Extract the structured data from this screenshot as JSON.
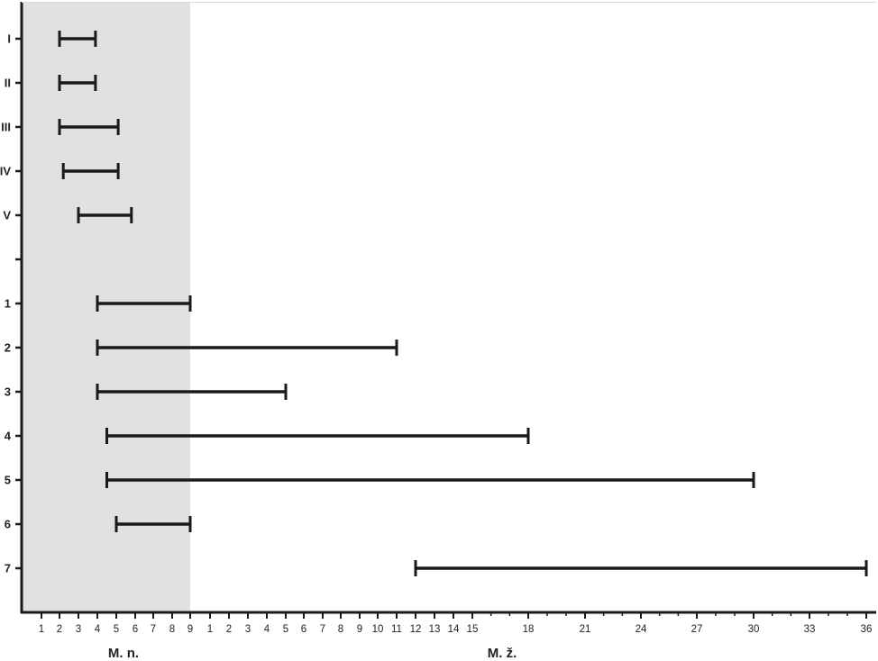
{
  "chart_data": {
    "type": "range-bar",
    "sections": [
      {
        "label": "M. n.",
        "ticks": [
          "1",
          "2",
          "3",
          "4",
          "5",
          "6",
          "7",
          "8",
          "9"
        ]
      },
      {
        "label": "M. ž.",
        "ticks": [
          "1",
          "2",
          "3",
          "4",
          "5",
          "6",
          "7",
          "8",
          "9",
          "10",
          "11",
          "12",
          "13",
          "14",
          "15",
          "18",
          "21",
          "24",
          "27",
          "30",
          "33",
          "36"
        ]
      }
    ],
    "shaded_section": "M. n.",
    "colors": {
      "shade": "#e1e1e1",
      "bar": "#1a1a1a",
      "axis": "#1a1a1a"
    },
    "rows": [
      {
        "label": "I",
        "start": {
          "section": "M. n.",
          "value": 2
        },
        "end": {
          "section": "M. n.",
          "value": 3.9
        }
      },
      {
        "label": "II",
        "start": {
          "section": "M. n.",
          "value": 2
        },
        "end": {
          "section": "M. n.",
          "value": 3.9
        }
      },
      {
        "label": "III",
        "start": {
          "section": "M. n.",
          "value": 2
        },
        "end": {
          "section": "M. n.",
          "value": 5.1
        }
      },
      {
        "label": "IV",
        "start": {
          "section": "M. n.",
          "value": 2.2
        },
        "end": {
          "section": "M. n.",
          "value": 5.1
        }
      },
      {
        "label": "V",
        "start": {
          "section": "M. n.",
          "value": 3
        },
        "end": {
          "section": "M. n.",
          "value": 5.8
        }
      },
      {
        "label": "",
        "start": null,
        "end": null
      },
      {
        "label": "1",
        "start": {
          "section": "M. n.",
          "value": 4
        },
        "end": {
          "section": "M. n.",
          "value": 9
        }
      },
      {
        "label": "2",
        "start": {
          "section": "M. n.",
          "value": 4
        },
        "end": {
          "section": "M. ž.",
          "value": 11
        }
      },
      {
        "label": "3",
        "start": {
          "section": "M. n.",
          "value": 4
        },
        "end": {
          "section": "M. ž.",
          "value": 5
        }
      },
      {
        "label": "4",
        "start": {
          "section": "M. n.",
          "value": 4.5
        },
        "end": {
          "section": "M. ž.",
          "value": 18
        }
      },
      {
        "label": "5",
        "start": {
          "section": "M. n.",
          "value": 4.5
        },
        "end": {
          "section": "M. ž.",
          "value": 30
        }
      },
      {
        "label": "6",
        "start": {
          "section": "M. n.",
          "value": 5
        },
        "end": {
          "section": "M. n.",
          "value": 9
        }
      },
      {
        "label": "7",
        "start": {
          "section": "M. ž.",
          "value": 12
        },
        "end": {
          "section": "M. ž.",
          "value": 36
        }
      }
    ]
  }
}
